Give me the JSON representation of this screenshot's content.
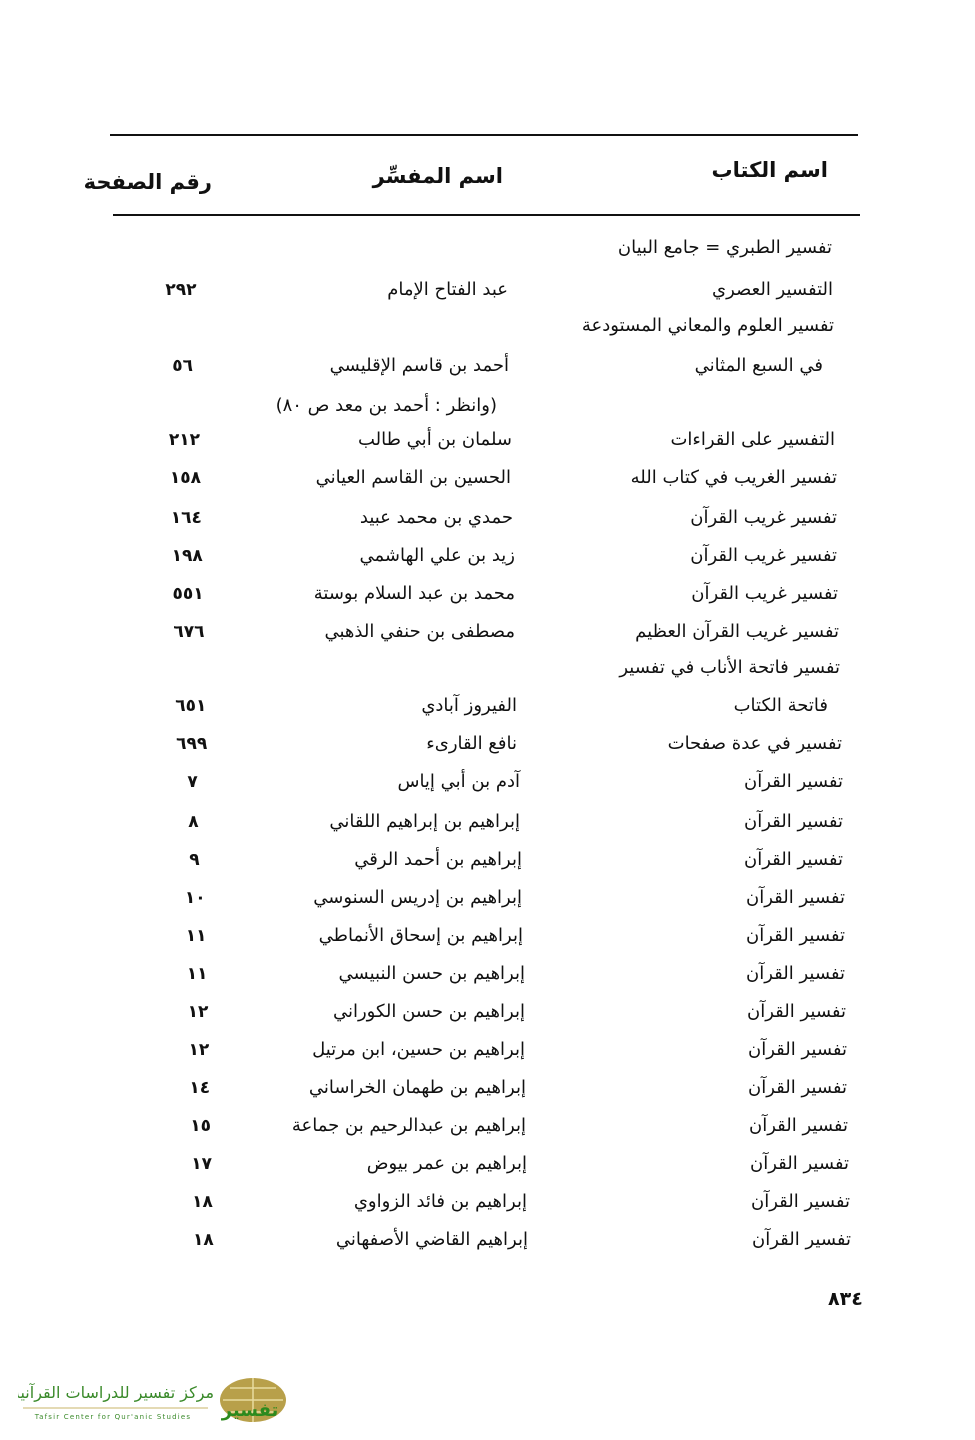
{
  "header": {
    "book": "اسم الكتاب",
    "author": "اسم المفسِّر",
    "page": "رقم الصفحة"
  },
  "rows": [
    {
      "book": "تفسير الطبري = جامع البيان",
      "author": "",
      "page": ""
    },
    {
      "book": "التفسير العصري",
      "author": "عبد الفتاح الإمام",
      "page": "٢٩٢"
    },
    {
      "book": "تفسير العلوم والمعاني المستودعة",
      "author": "",
      "page": ""
    },
    {
      "book": "في السبع المثاني",
      "author": "أحمد بن قاسم الإقليسي",
      "page": "٥٦"
    },
    {
      "book": "",
      "author": "(وانظر : أحمد بن معد ص ٨٠)",
      "page": ""
    },
    {
      "book": "التفسير على القراءات",
      "author": "سلمان بن أبي طالب",
      "page": "٢١٢"
    },
    {
      "book": "تفسير الغريب في كتاب الله",
      "author": "الحسين بن القاسم العياني",
      "page": "١٥٨"
    },
    {
      "book": "تفسير غريب القرآن",
      "author": "حمدي بن محمد عبيد",
      "page": "١٦٤"
    },
    {
      "book": "تفسير غريب القرآن",
      "author": "زيد بن علي الهاشمي",
      "page": "١٩٨"
    },
    {
      "book": "تفسير غريب القرآن",
      "author": "محمد بن عبد السلام بوستة",
      "page": "٥٥١"
    },
    {
      "book": "تفسير غريب القرآن العظيم",
      "author": "مصطفى بن حنفي الذهبي",
      "page": "٦٧٦"
    },
    {
      "book": "تفسير فاتحة الأناب في تفسير",
      "author": "",
      "page": ""
    },
    {
      "book": "فاتحة الكتاب",
      "author": "الفيروز آبادي",
      "page": "٦٥١"
    },
    {
      "book": "تفسير في عدة صفحات",
      "author": "نافع القارىء",
      "page": "٦٩٩"
    },
    {
      "book": "تفسير القرآن",
      "author": "آدم بن أبي إياس",
      "page": "٧"
    },
    {
      "book": "تفسير القرآن",
      "author": "إبراهيم بن إبراهيم اللقاني",
      "page": "٨"
    },
    {
      "book": "تفسير القرآن",
      "author": "إبراهيم بن أحمد الرقي",
      "page": "٩"
    },
    {
      "book": "تفسير القرآن",
      "author": "إبراهيم بن إدريس السنوسي",
      "page": "١٠"
    },
    {
      "book": "تفسير القرآن",
      "author": "إبراهيم بن إسحاق الأنماطي",
      "page": "١١"
    },
    {
      "book": "تفسير القرآن",
      "author": "إبراهيم بن حسن النبيسي",
      "page": "١١"
    },
    {
      "book": "تفسير القرآن",
      "author": "إبراهيم بن حسن الكوراني",
      "page": "١٢"
    },
    {
      "book": "تفسير القرآن",
      "author": "إبراهيم بن حسين، ابن مرتيل",
      "page": "١٢"
    },
    {
      "book": "تفسير القرآن",
      "author": "إبراهيم بن طهمان الخراساني",
      "page": "١٤"
    },
    {
      "book": "تفسير القرآن",
      "author": "إبراهيم بن عبدالرحيم بن جماعة",
      "page": "١٥"
    },
    {
      "book": "تفسير القرآن",
      "author": "إبراهيم بن عمر بيوض",
      "page": "١٧"
    },
    {
      "book": "تفسير القرآن",
      "author": "إبراهيم بن فائد الزواوي",
      "page": "١٨"
    },
    {
      "book": "تفسير القرآن",
      "author": "إبراهيم القاضي الأصفهاني",
      "page": "١٨"
    }
  ],
  "page_number": "٨٣٤",
  "logo": {
    "arabic": "مركز تفسير للدراسات القرآنية",
    "english": "Tafsir Center for Qur'anic Studies",
    "mark": "تفسير"
  }
}
